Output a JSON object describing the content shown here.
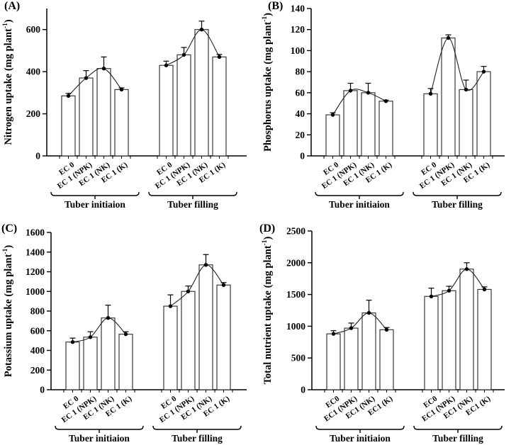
{
  "colors": {
    "foreground": "#000000",
    "background": "#ffffff",
    "bar_fill": "#ffffff",
    "bar_stroke": "#3a3a3a",
    "line_color": "#222222"
  },
  "chart_data": [
    {
      "type": "bar",
      "panel_label": "(A)",
      "title": "",
      "xlabel": "",
      "ylabel": "Nitrogen uptake (mg plant⁻¹)",
      "ylim": [
        0,
        700
      ],
      "yticks": [
        0,
        200,
        400,
        600
      ],
      "grid": false,
      "legend": "none",
      "error_bars": true,
      "marker": "filled-circle",
      "categories": [
        "EC 0",
        "EC 1 (NPK)",
        "EC 1 (NK)",
        "EC 1 (K)"
      ],
      "series": [
        {
          "name": "Tuber initiaion",
          "values": [
            285,
            370,
            415,
            315
          ],
          "errors": [
            12,
            35,
            55,
            8
          ]
        },
        {
          "name": "Tuber filling",
          "values": [
            430,
            480,
            600,
            470
          ],
          "errors": [
            20,
            35,
            40,
            12
          ]
        }
      ]
    },
    {
      "type": "bar",
      "panel_label": "(B)",
      "title": "",
      "xlabel": "",
      "ylabel": "Phosphorus uptake (mg plant⁻¹)",
      "ylim": [
        0,
        140
      ],
      "yticks": [
        0,
        20,
        40,
        60,
        80,
        100,
        120,
        140
      ],
      "grid": false,
      "legend": "none",
      "error_bars": true,
      "marker": "filled-circle",
      "categories": [
        "EC 0",
        "EC 1 (NPK)",
        "EC 1 (NK)",
        "EC 1 (K)"
      ],
      "series": [
        {
          "name": "Tuber initiaion",
          "values": [
            39,
            62,
            60,
            52
          ],
          "errors": [
            2,
            7,
            9,
            1
          ]
        },
        {
          "name": "Tuber filling",
          "values": [
            59,
            112,
            63,
            80
          ],
          "errors": [
            5,
            3,
            9,
            5
          ]
        }
      ]
    },
    {
      "type": "bar",
      "panel_label": "(C)",
      "title": "",
      "xlabel": "",
      "ylabel": "Potassium uptake (mg plant⁻¹)",
      "ylim": [
        0,
        1600
      ],
      "yticks": [
        0,
        200,
        400,
        600,
        800,
        1000,
        1200,
        1400,
        1600
      ],
      "grid": false,
      "legend": "none",
      "error_bars": true,
      "marker": "filled-circle",
      "categories": [
        "EC 0",
        "EC 1 (NPK)",
        "EC 1 (NK)",
        "EC 1 (K)"
      ],
      "series": [
        {
          "name": "Tuber initiaion",
          "values": [
            485,
            535,
            730,
            565
          ],
          "errors": [
            40,
            55,
            130,
            25
          ]
        },
        {
          "name": "Tuber filling",
          "values": [
            850,
            1000,
            1270,
            1065
          ],
          "errors": [
            115,
            55,
            105,
            25
          ]
        }
      ]
    },
    {
      "type": "bar",
      "panel_label": "(D)",
      "title": "",
      "xlabel": "",
      "ylabel": "Total nutrient uptake (mg plant⁻¹)",
      "ylim": [
        0,
        2500
      ],
      "yticks": [
        0,
        500,
        1000,
        1500,
        2000,
        2500
      ],
      "grid": false,
      "legend": "none",
      "error_bars": true,
      "marker": "filled-circle",
      "categories": [
        "EC0",
        "EC1 (NPK)",
        "EC1 (NK)",
        "EC1 (K)"
      ],
      "series": [
        {
          "name": "Tuber initiaion",
          "values": [
            880,
            970,
            1210,
            945
          ],
          "errors": [
            50,
            80,
            200,
            35
          ]
        },
        {
          "name": "Tuber filling",
          "values": [
            1470,
            1560,
            1900,
            1580
          ],
          "errors": [
            130,
            70,
            100,
            40
          ]
        }
      ]
    }
  ]
}
